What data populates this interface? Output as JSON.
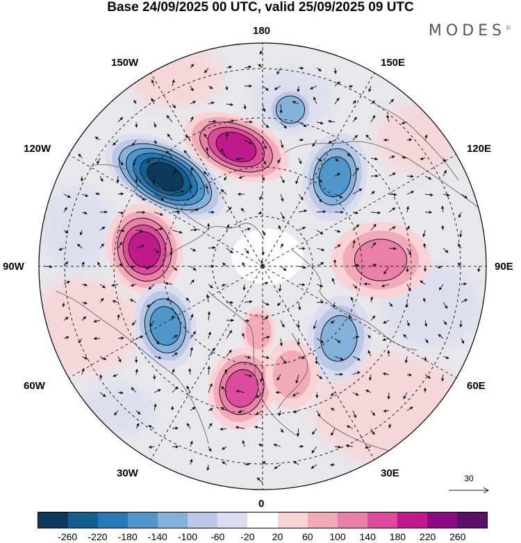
{
  "title": "Base 24/09/2025 00 UTC, valid 25/09/2025 09 UTC",
  "brand": "MODES",
  "brand_mark": "©",
  "longitude_labels": {
    "top": "180",
    "bottom": "0",
    "left": "90W",
    "right": "90E",
    "upper_left": "150W",
    "upper_left_mid": "120W",
    "lower_left_mid": "60W",
    "lower_left": "30W",
    "upper_right": "150E",
    "upper_right_mid": "120E",
    "lower_right_mid": "60E",
    "lower_right": "30E"
  },
  "reference_vector": {
    "label": "30"
  },
  "colorbar": {
    "ticks": [
      "-260",
      "-220",
      "-180",
      "-140",
      "-100",
      "-60",
      "-20",
      "20",
      "60",
      "100",
      "140",
      "180",
      "220",
      "260"
    ],
    "colors": [
      "#0d3a5c",
      "#135f8f",
      "#2678b6",
      "#4f97cb",
      "#84b2da",
      "#b9c8e6",
      "#dcdcef",
      "#ffffff",
      "#f9d3d6",
      "#f3aab8",
      "#ea7fa7",
      "#dd4b9c",
      "#c0198b",
      "#8e0a86",
      "#5a0f6b"
    ]
  },
  "anomalies": [
    {
      "sign": "neg",
      "intensity": 0.95
    },
    {
      "sign": "pos",
      "intensity": 0.85
    },
    {
      "sign": "pos",
      "intensity": 0.75
    },
    {
      "sign": "neg",
      "intensity": 0.6
    },
    {
      "sign": "pos",
      "intensity": 0.55
    },
    {
      "sign": "neg",
      "intensity": 0.5
    },
    {
      "sign": "pos",
      "intensity": 0.6
    },
    {
      "sign": "neg",
      "intensity": 0.45
    },
    {
      "sign": "neg",
      "intensity": 0.4
    },
    {
      "sign": "pos",
      "intensity": 0.3
    },
    {
      "sign": "pos",
      "intensity": 0.3
    }
  ]
}
